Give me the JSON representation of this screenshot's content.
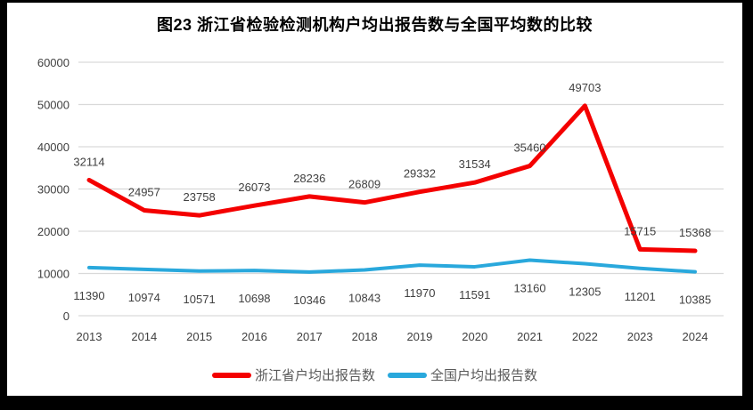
{
  "title": "图23  浙江省检验检测机构户均出报告数与全国平均数的比较",
  "colors": {
    "zhejiang_line": "#f40000",
    "national_line": "#29a8dc",
    "gridline": "#d9d9d9",
    "axis_text": "#404040",
    "label_text": "#404040",
    "frame": "#000000",
    "background": "#ffffff"
  },
  "chart_data": {
    "type": "line",
    "title": "图23  浙江省检验检测机构户均出报告数与全国平均数的比较",
    "categories": [
      "2013",
      "2014",
      "2015",
      "2016",
      "2017",
      "2018",
      "2019",
      "2020",
      "2021",
      "2022",
      "2023",
      "2024"
    ],
    "series": [
      {
        "name": "浙江省户均出报告数",
        "color": "#f40000",
        "values": [
          32114,
          24957,
          23758,
          26073,
          28236,
          26809,
          29332,
          31534,
          35460,
          49703,
          15715,
          15368
        ],
        "label_position": "above",
        "line_width": 5
      },
      {
        "name": "全国户均出报告数",
        "color": "#29a8dc",
        "values": [
          11390,
          10974,
          10571,
          10698,
          10346,
          10843,
          11970,
          11591,
          13160,
          12305,
          11201,
          10385
        ],
        "label_position": "below",
        "line_width": 4
      }
    ],
    "xlabel": "",
    "ylabel": "",
    "ylim": [
      0,
      60000
    ],
    "yticks": [
      0,
      10000,
      20000,
      30000,
      40000,
      50000,
      60000
    ],
    "grid": true,
    "legend_position": "bottom",
    "data_labels": true
  }
}
